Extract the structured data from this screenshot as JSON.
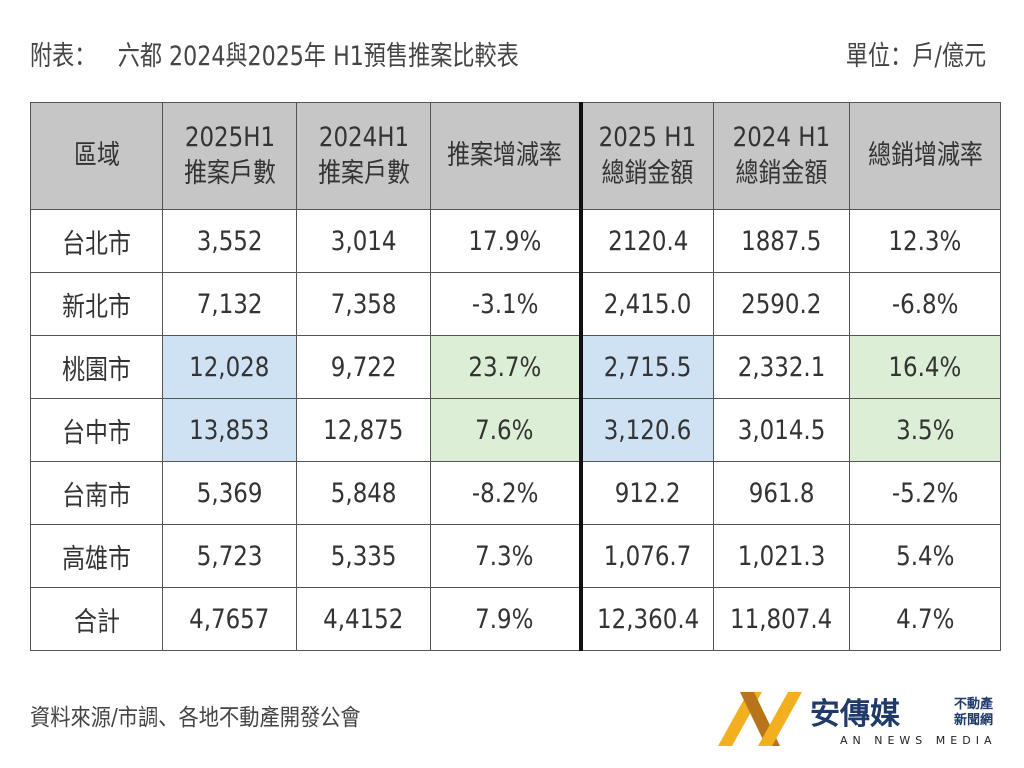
{
  "title": {
    "prefix": "附表：",
    "text": "六都 2024與2025年 H1預售推案比較表"
  },
  "unit": "單位：戶/億元",
  "table": {
    "headers": [
      "區域",
      "2025H1\n推案戶數",
      "2024H1\n推案戶數",
      "推案增減率",
      "2025 H1\n總銷金額",
      "2024 H1\n總銷金額",
      "總銷增減率"
    ],
    "rows": [
      [
        "台北市",
        "3,552",
        "3,014",
        "17.9%",
        "2120.4",
        "1887.5",
        "12.3%"
      ],
      [
        "新北市",
        "7,132",
        "7,358",
        "-3.1%",
        "2,415.0",
        "2590.2",
        "-6.8%"
      ],
      [
        "桃園市",
        "12,028",
        "9,722",
        "23.7%",
        "2,715.5",
        "2,332.1",
        "16.4%"
      ],
      [
        "台中市",
        "13,853",
        "12,875",
        "7.6%",
        "3,120.6",
        "3,014.5",
        "3.5%"
      ],
      [
        "台南市",
        "5,369",
        "5,848",
        "-8.2%",
        "912.2",
        "961.8",
        "-5.2%"
      ],
      [
        "高雄市",
        "5,723",
        "5,335",
        "7.3%",
        "1,076.7",
        "1,021.3",
        "5.4%"
      ],
      [
        "合計",
        "4,7657",
        "4,4152",
        "7.9%",
        "12,360.4",
        "11,807.4",
        "4.7%"
      ]
    ],
    "highlights": {
      "blue": "#cfe2f3",
      "green": "#dcefd6",
      "header": "#c6c6c6"
    }
  },
  "source": "資料來源/市調、各地不動產開發公會",
  "logo": {
    "name": "安傳媒",
    "tag1": "不動產",
    "tag2": "新聞網",
    "english": "AN NEWS MEDIA",
    "colors": [
      "#f2b01e",
      "#b8741a",
      "#1f3a6b"
    ]
  }
}
